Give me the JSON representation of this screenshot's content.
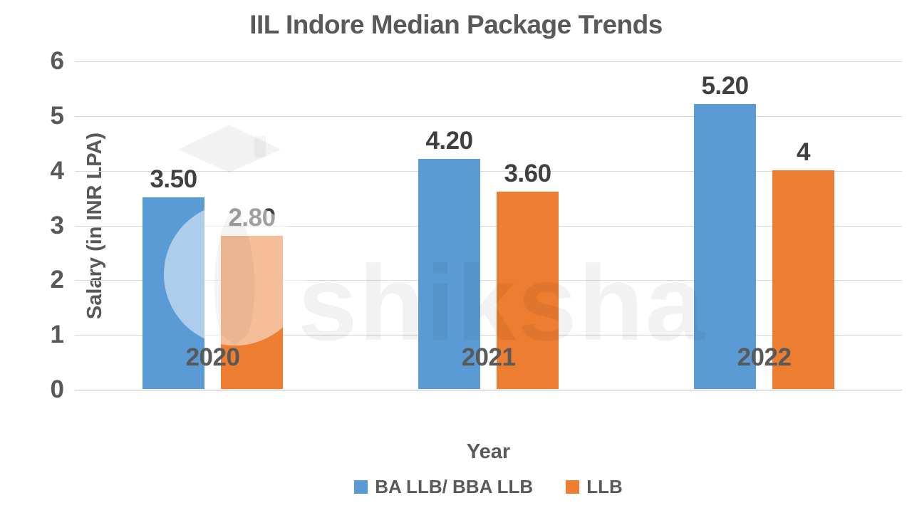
{
  "chart_data": {
    "type": "bar",
    "title": "IIL Indore Median Package Trends",
    "categories": [
      "2020",
      "2021",
      "2022"
    ],
    "series": [
      {
        "name": "BA LLB/ BBA LLB",
        "color": "#5B9BD5",
        "values": [
          3.5,
          4.2,
          5.2
        ],
        "display_labels": [
          "3.50",
          "4.20",
          "5.20"
        ]
      },
      {
        "name": "LLB",
        "color": "#ED7D31",
        "values": [
          2.8,
          3.6,
          4.0
        ],
        "display_labels": [
          "2.80",
          "3.60",
          "4"
        ]
      }
    ],
    "xlabel": "Year",
    "ylabel": "Salary (in INR LPA)",
    "ylim": [
      0,
      6
    ],
    "yticks": [
      0,
      1,
      2,
      3,
      4,
      5,
      6
    ],
    "grid": true,
    "legend_position": "bottom"
  },
  "colors": {
    "gridline": "#D9D9D9",
    "axis_line": "#BFBFBF",
    "title_text": "#595959",
    "data_label_text": "#404040"
  },
  "watermark": {
    "text": "shiksha"
  }
}
